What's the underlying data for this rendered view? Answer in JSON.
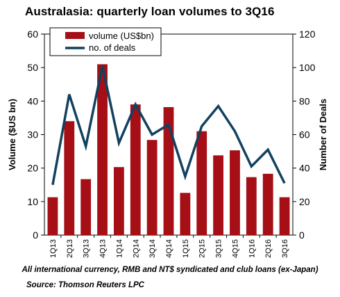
{
  "title": "Australasia: quarterly loan volumes to 3Q16",
  "caption": "All international currency, RMB and NT$ syndicated and club loans (ex-Japan)",
  "source": "Source: Thomson Reuters LPC",
  "colors": {
    "bar": "#a50f15",
    "line": "#12415f",
    "axis": "#000000"
  },
  "chart_data": {
    "type": "bar",
    "categories": [
      "1Q13",
      "2Q13",
      "3Q13",
      "4Q13",
      "1Q14",
      "2Q14",
      "3Q14",
      "4Q14",
      "1Q15",
      "2Q15",
      "3Q15",
      "4Q15",
      "1Q16",
      "2Q16",
      "3Q16"
    ],
    "series": [
      {
        "name": "volume (US$bn)",
        "type": "bar",
        "axis": "left",
        "values": [
          11.3,
          34.0,
          16.7,
          51.0,
          20.3,
          39.0,
          28.4,
          38.2,
          12.6,
          31.0,
          23.8,
          25.3,
          17.3,
          18.3,
          11.3
        ]
      },
      {
        "name": "no. of deals",
        "type": "line",
        "axis": "right",
        "values": [
          30,
          84,
          53,
          101,
          55,
          78,
          60,
          66,
          35,
          65,
          77,
          62,
          41,
          51,
          31
        ]
      }
    ],
    "ylabel": "Volume ($US bn)",
    "y2label": "Number of Deals",
    "ylim": [
      0,
      60
    ],
    "y2lim": [
      0,
      120
    ],
    "yticks": [
      "0",
      "10",
      "20",
      "30",
      "40",
      "50",
      "60"
    ],
    "y2ticks": [
      "0",
      "20",
      "40",
      "60",
      "80",
      "100",
      "120"
    ],
    "grid": false,
    "legend": "top-left"
  }
}
